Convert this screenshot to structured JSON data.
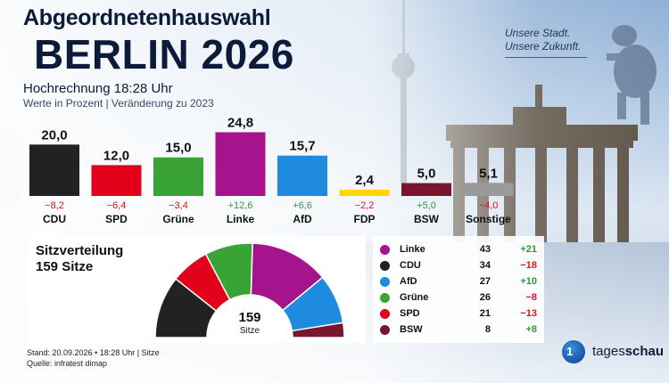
{
  "header": {
    "title_line1": "Abgeordnetenhauswahl",
    "title_line2": "BERLIN 2026",
    "projection": "Hochrechnung 18:28 Uhr",
    "units_note": "Werte in Prozent | Veränderung zu 2023",
    "slogan_line1": "Unsere Stadt.",
    "slogan_line2": "Unsere Zukunft."
  },
  "chart_data": [
    {
      "type": "bar",
      "title": "",
      "ylim": [
        0,
        26
      ],
      "categories": [
        "CDU",
        "SPD",
        "Grüne",
        "Linke",
        "AfD",
        "FDP",
        "BSW",
        "Sonstige"
      ],
      "values": [
        20.0,
        12.0,
        15.0,
        24.8,
        15.7,
        2.4,
        5.0,
        5.1
      ],
      "value_labels": [
        "20,0",
        "12,0",
        "15,0",
        "24,8",
        "15,7",
        "2,4",
        "5,0",
        "5,1"
      ],
      "changes": [
        -8.2,
        -6.4,
        -3.4,
        12.6,
        6.6,
        -2.2,
        5.0,
        -4.0
      ],
      "change_labels": [
        "−8,2",
        "−6,4",
        "−3,4",
        "+12,6",
        "+6,6",
        "−2,2",
        "+5,0",
        "−4,0"
      ],
      "colors": [
        "#222222",
        "#e3001b",
        "#3aa335",
        "#a5148c",
        "#1e8be0",
        "#ffd500",
        "#7a1530",
        "#9a9a9a"
      ]
    },
    {
      "type": "pie",
      "subtype": "hemicycle",
      "title_line1": "Sitzverteilung",
      "title_line2": "159 Sitze",
      "total": "159",
      "total_label": "Sitze",
      "parties": [
        {
          "name": "Linke",
          "seats": 43,
          "change": "+21",
          "color": "#a5148c"
        },
        {
          "name": "CDU",
          "seats": 34,
          "change": "−18",
          "color": "#222222"
        },
        {
          "name": "AfD",
          "seats": 27,
          "change": "+10",
          "color": "#1e8be0"
        },
        {
          "name": "Grüne",
          "seats": 26,
          "change": "−8",
          "color": "#3aa335"
        },
        {
          "name": "SPD",
          "seats": 21,
          "change": "−13",
          "color": "#e3001b"
        },
        {
          "name": "BSW",
          "seats": 8,
          "change": "+8",
          "color": "#7a1530"
        }
      ],
      "arc_order": [
        "CDU",
        "SPD",
        "Grüne",
        "Linke",
        "AfD",
        "BSW"
      ]
    }
  ],
  "colors": {
    "positive": "#2e9a3a",
    "negative": "#d4141e",
    "title": "#0d1b3a"
  },
  "footer": {
    "line1": "Stand:  20.09.2026 • 18:28 Uhr | Sitze",
    "line2": "Quelle: infratest dimap"
  },
  "logo": {
    "badge": "1",
    "text_regular": "tages",
    "text_bold": "schau"
  }
}
